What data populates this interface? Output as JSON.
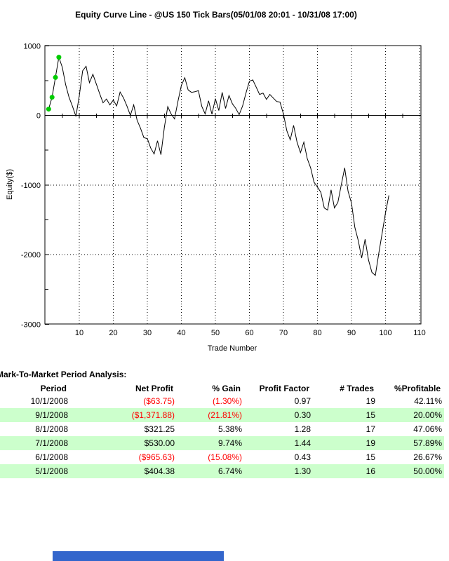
{
  "chart_data": {
    "type": "line",
    "title": "Equity Curve Line - @US 150 Tick Bars(05/01/08 20:01 - 10/31/08 17:00)",
    "xlabel": "Trade Number",
    "ylabel": "Equity($)",
    "xlim": [
      0,
      110.4
    ],
    "ylim": [
      -3000,
      1000
    ],
    "x_ticks": [
      10,
      20,
      30,
      40,
      50,
      60,
      70,
      80,
      90,
      100,
      110
    ],
    "y_ticks": [
      1000,
      0,
      -1000,
      -2000,
      -3000
    ],
    "y_minor_ticks": [
      500,
      -500,
      -1500,
      -2500
    ],
    "grid": "dotted",
    "legend": "none",
    "line_color": "#000000",
    "marker_color": "#00CC00",
    "markers_on_first_trades": [
      1,
      2,
      3,
      4
    ],
    "series": [
      {
        "name": "Equity",
        "x": [
          1,
          2,
          3,
          4,
          5,
          6,
          7,
          8,
          9,
          10,
          11,
          12,
          13,
          14,
          15,
          16,
          17,
          18,
          19,
          20,
          21,
          22,
          23,
          24,
          25,
          26,
          27,
          28,
          29,
          30,
          31,
          32,
          33,
          34,
          35,
          36,
          37,
          38,
          39,
          40,
          41,
          42,
          43,
          44,
          45,
          46,
          47,
          48,
          49,
          50,
          51,
          52,
          53,
          54,
          55,
          56,
          57,
          58,
          59,
          60,
          61,
          62,
          63,
          64,
          65,
          66,
          67,
          68,
          69,
          70,
          71,
          72,
          73,
          74,
          75,
          76,
          77,
          78,
          79,
          80,
          81,
          82,
          83,
          84,
          85,
          86,
          87,
          88,
          89,
          90,
          91,
          92,
          93,
          94,
          95,
          96,
          97,
          98,
          99,
          100,
          101
        ],
        "y": [
          90,
          260,
          545,
          835,
          690,
          440,
          260,
          130,
          -15,
          280,
          640,
          705,
          470,
          590,
          450,
          310,
          180,
          235,
          150,
          220,
          135,
          335,
          250,
          135,
          0,
          150,
          -70,
          -185,
          -320,
          -335,
          -470,
          -555,
          -365,
          -565,
          -170,
          125,
          20,
          -50,
          200,
          430,
          541,
          365,
          330,
          340,
          355,
          130,
          20,
          210,
          15,
          240,
          70,
          330,
          100,
          285,
          165,
          100,
          10,
          135,
          320,
          490,
          510,
          405,
          300,
          320,
          230,
          300,
          250,
          200,
          190,
          20,
          -220,
          -352,
          -144,
          -385,
          -535,
          -385,
          -620,
          -755,
          -960,
          -1030,
          -1105,
          -1330,
          -1360,
          -1070,
          -1330,
          -1250,
          -1000,
          -755,
          -1090,
          -1260,
          -1610,
          -1800,
          -2050,
          -1780,
          -2080,
          -2255,
          -2300,
          -1990,
          -1700,
          -1400,
          -1150
        ]
      }
    ]
  },
  "analysis": {
    "title": "Mark-To-Market Period Analysis:",
    "columns": [
      "Period",
      "Net Profit",
      "% Gain",
      "Profit Factor",
      "# Trades",
      "%Profitable"
    ],
    "rows": [
      [
        "10/1/2008",
        "($63.75)",
        "(1.30%)",
        "0.97",
        "19",
        "42.11%"
      ],
      [
        "9/1/2008",
        "($1,371.88)",
        "(21.81%)",
        "0.30",
        "15",
        "20.00%"
      ],
      [
        "8/1/2008",
        "$321.25",
        "5.38%",
        "1.28",
        "17",
        "47.06%"
      ],
      [
        "7/1/2008",
        "$530.00",
        "9.74%",
        "1.44",
        "19",
        "57.89%"
      ],
      [
        "6/1/2008",
        "($965.63)",
        "(15.08%)",
        "0.43",
        "15",
        "26.67%"
      ],
      [
        "5/1/2008",
        "$404.38",
        "6.74%",
        "1.30",
        "16",
        "50.00%"
      ]
    ],
    "row_highlight_color": "#CCFFCC",
    "negative_color": "#FF0000",
    "text_color": "#000000"
  },
  "misc": {
    "scrollbar_color": "#3366CC"
  }
}
